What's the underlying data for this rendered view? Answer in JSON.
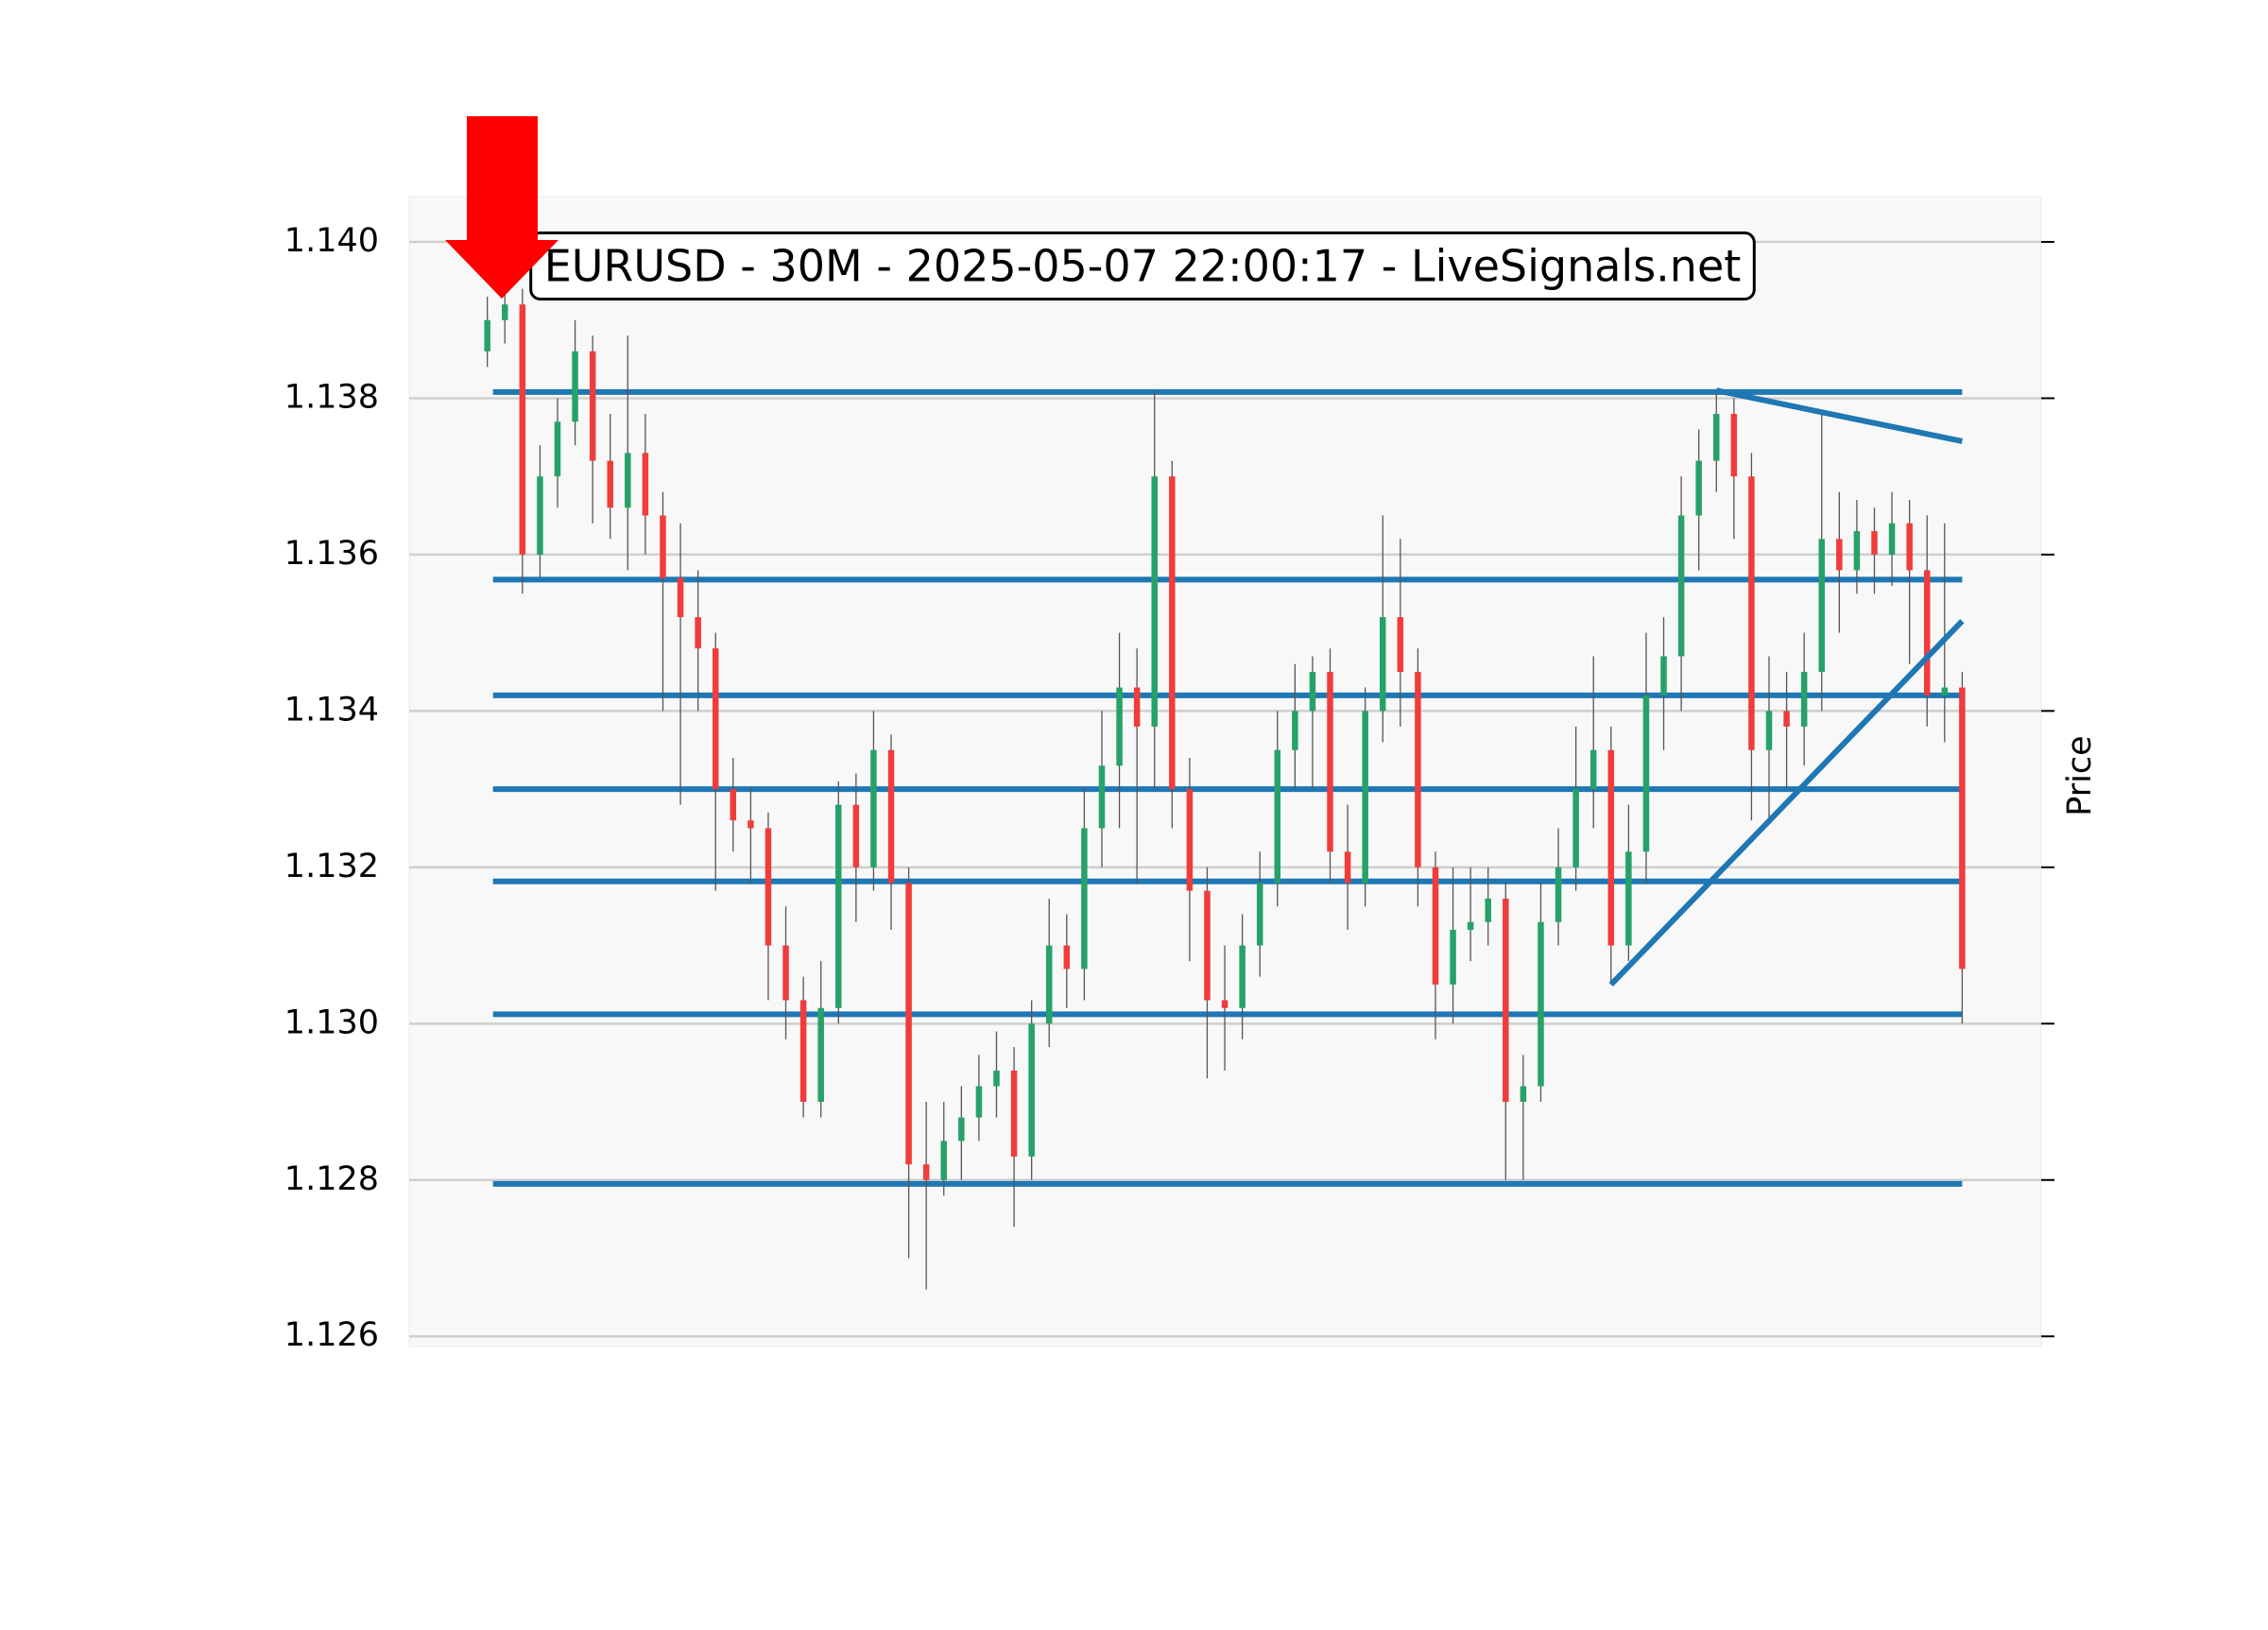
{
  "chart_data": {
    "type": "candlestick",
    "title": "EURUSD - 30M - 2025-05-07 22:00:17 - LiveSignals.net",
    "ylabel": "Price",
    "xlim": [
      -4.45,
      88.5
    ],
    "ylim": [
      1.12587,
      1.14058
    ],
    "yticks": [
      1.126,
      1.128,
      {
        "value": 1.13,
        "label": "1.130"
      },
      1.132,
      1.134,
      1.136,
      1.138,
      {
        "value": 1.14,
        "label": "1.140"
      }
    ],
    "grid": true,
    "up_color": "#26a269",
    "down_color": "#f03c3c",
    "level_color": "#1f77b4",
    "open": [
      1.1386,
      1.139,
      1.1392,
      1.136,
      1.137,
      1.1377,
      1.1386,
      1.1372,
      1.1366,
      1.1373,
      1.1365,
      1.1357,
      1.1352,
      1.1348,
      1.133,
      1.1326,
      1.1325,
      1.131,
      1.1303,
      1.129,
      1.1302,
      1.1328,
      1.132,
      1.1335,
      1.1318,
      1.1282,
      1.128,
      1.1285,
      1.1288,
      1.1292,
      1.1294,
      1.1283,
      1.13,
      1.131,
      1.1307,
      1.1325,
      1.1333,
      1.1343,
      1.1338,
      1.137,
      1.133,
      1.1317,
      1.1303,
      1.1302,
      1.131,
      1.1318,
      1.1335,
      1.134,
      1.1345,
      1.1322,
      1.1318,
      1.134,
      1.1352,
      1.1345,
      1.132,
      1.1305,
      1.1312,
      1.1313,
      1.1316,
      1.129,
      1.1292,
      1.1313,
      1.132,
      1.133,
      1.1335,
      1.131,
      1.1322,
      1.1342,
      1.1347,
      1.1365,
      1.1372,
      1.1378,
      1.137,
      1.1335,
      1.134,
      1.1338,
      1.1345,
      1.1362,
      1.1358,
      1.1363,
      1.136,
      1.1364,
      1.1358,
      1.1342,
      1.1343
    ],
    "high": [
      1.1393,
      1.1395,
      1.1394,
      1.1374,
      1.138,
      1.139,
      1.1388,
      1.1378,
      1.1388,
      1.1378,
      1.1368,
      1.1364,
      1.1358,
      1.135,
      1.1334,
      1.133,
      1.1327,
      1.1315,
      1.1306,
      1.1308,
      1.1331,
      1.1332,
      1.134,
      1.1337,
      1.132,
      1.129,
      1.129,
      1.1292,
      1.1296,
      1.1299,
      1.1297,
      1.1303,
      1.1316,
      1.1314,
      1.133,
      1.134,
      1.135,
      1.1348,
      1.1381,
      1.1372,
      1.1334,
      1.132,
      1.131,
      1.1314,
      1.1322,
      1.134,
      1.1346,
      1.1347,
      1.1348,
      1.1328,
      1.1343,
      1.1365,
      1.1362,
      1.1348,
      1.1322,
      1.132,
      1.132,
      1.132,
      1.1318,
      1.1296,
      1.1318,
      1.1325,
      1.1338,
      1.1347,
      1.1338,
      1.1328,
      1.135,
      1.1352,
      1.137,
      1.1376,
      1.1381,
      1.138,
      1.1373,
      1.1347,
      1.1345,
      1.135,
      1.1378,
      1.1368,
      1.1367,
      1.1366,
      1.1368,
      1.1367,
      1.1365,
      1.1364,
      1.1345
    ],
    "low": [
      1.1384,
      1.1387,
      1.1355,
      1.1357,
      1.1366,
      1.1374,
      1.1364,
      1.1362,
      1.1358,
      1.136,
      1.134,
      1.1328,
      1.134,
      1.1317,
      1.1322,
      1.1318,
      1.1303,
      1.1298,
      1.1288,
      1.1288,
      1.13,
      1.1313,
      1.1317,
      1.1312,
      1.127,
      1.1266,
      1.1278,
      1.128,
      1.1285,
      1.1288,
      1.1274,
      1.128,
      1.1297,
      1.1302,
      1.1303,
      1.132,
      1.1325,
      1.1318,
      1.133,
      1.1325,
      1.1308,
      1.1293,
      1.1294,
      1.1298,
      1.1306,
      1.1315,
      1.133,
      1.133,
      1.1318,
      1.1312,
      1.1315,
      1.1336,
      1.1338,
      1.1315,
      1.1298,
      1.13,
      1.1308,
      1.131,
      1.128,
      1.128,
      1.129,
      1.131,
      1.1317,
      1.1325,
      1.1305,
      1.1308,
      1.1318,
      1.1335,
      1.134,
      1.1358,
      1.1368,
      1.1362,
      1.1326,
      1.1326,
      1.133,
      1.1333,
      1.134,
      1.135,
      1.1355,
      1.1355,
      1.1356,
      1.1346,
      1.1338,
      1.1336,
      1.13
    ],
    "close": [
      1.139,
      1.1392,
      1.136,
      1.137,
      1.1377,
      1.1386,
      1.1372,
      1.1366,
      1.1373,
      1.1365,
      1.1357,
      1.1352,
      1.1348,
      1.133,
      1.1326,
      1.1325,
      1.131,
      1.1303,
      1.129,
      1.1302,
      1.1328,
      1.132,
      1.1335,
      1.1318,
      1.1282,
      1.128,
      1.1285,
      1.1288,
      1.1292,
      1.1294,
      1.1283,
      1.13,
      1.131,
      1.1307,
      1.1325,
      1.1333,
      1.1343,
      1.1338,
      1.137,
      1.133,
      1.1317,
      1.1303,
      1.1302,
      1.131,
      1.1318,
      1.1335,
      1.134,
      1.1345,
      1.1322,
      1.1318,
      1.134,
      1.1352,
      1.1345,
      1.132,
      1.1305,
      1.1312,
      1.1313,
      1.1316,
      1.129,
      1.1292,
      1.1313,
      1.132,
      1.133,
      1.1335,
      1.131,
      1.1322,
      1.1342,
      1.1347,
      1.1365,
      1.1372,
      1.1378,
      1.137,
      1.1335,
      1.134,
      1.1338,
      1.1345,
      1.1362,
      1.1358,
      1.1363,
      1.136,
      1.1364,
      1.1358,
      1.1342,
      1.1343,
      1.1307
    ],
    "levels": [
      1.13808,
      1.13568,
      1.1342,
      1.133,
      1.13182,
      1.13012,
      1.12795
    ],
    "trendlines": [
      {
        "x": [
          70,
          84
        ],
        "y": [
          1.1381,
          1.13745
        ]
      },
      {
        "x": [
          64,
          84
        ],
        "y": [
          1.1305,
          1.13515
        ]
      }
    ]
  }
}
